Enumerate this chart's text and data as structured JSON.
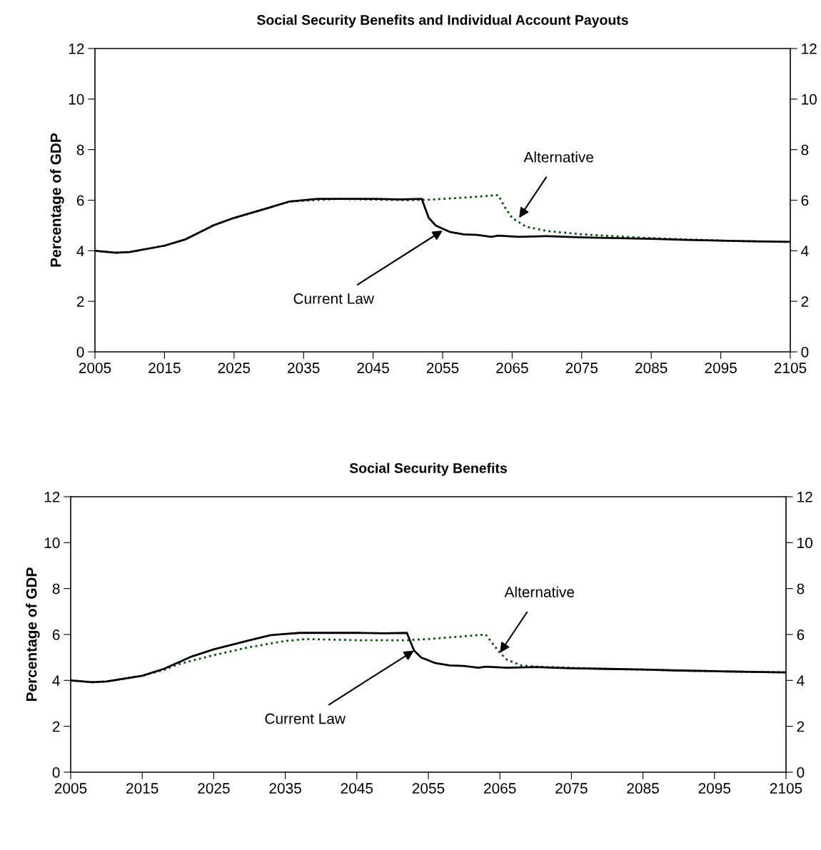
{
  "chart_data": [
    {
      "type": "line",
      "title": "Social Security Benefits and Individual Account Payouts",
      "ylabel": "Percentage of GDP",
      "xlim": [
        2005,
        2105
      ],
      "xticks": [
        2005,
        2015,
        2025,
        2035,
        2045,
        2055,
        2065,
        2075,
        2085,
        2095,
        2105
      ],
      "ylim": [
        0,
        12
      ],
      "yticks": [
        0,
        2,
        4,
        6,
        8,
        10,
        12
      ],
      "y2lim": [
        0,
        12
      ],
      "y2ticks": [
        0,
        2,
        4,
        6,
        8,
        10,
        12
      ],
      "grid": false,
      "series": [
        {
          "color": "#004d00",
          "line_style": "dotted",
          "x": [
            2005,
            2008,
            2010,
            2015,
            2018,
            2022,
            2025,
            2030,
            2033,
            2040,
            2050,
            2053,
            2058,
            2063,
            2064,
            2065,
            2067,
            2070,
            2075,
            2080,
            2085,
            2090,
            2095,
            2100,
            2105
          ],
          "values": [
            4.0,
            3.92,
            3.95,
            4.2,
            4.45,
            5.0,
            5.3,
            5.7,
            5.95,
            6.05,
            6.0,
            6.02,
            6.1,
            6.2,
            5.7,
            5.3,
            4.95,
            4.78,
            4.65,
            4.57,
            4.5,
            4.45,
            4.4,
            4.37,
            4.35
          ]
        },
        {
          "color": "#000000",
          "line_style": "solid",
          "x": [
            2005,
            2008,
            2010,
            2015,
            2018,
            2022,
            2025,
            2030,
            2033,
            2037,
            2045,
            2049,
            2052,
            2053,
            2054,
            2056,
            2058,
            2060,
            2062,
            2063,
            2066,
            2070,
            2075,
            2080,
            2085,
            2090,
            2095,
            2100,
            2105
          ],
          "values": [
            4.0,
            3.92,
            3.95,
            4.2,
            4.45,
            5.0,
            5.3,
            5.7,
            5.95,
            6.05,
            6.05,
            6.03,
            6.05,
            5.3,
            5.0,
            4.75,
            4.65,
            4.63,
            4.55,
            4.6,
            4.55,
            4.58,
            4.53,
            4.5,
            4.47,
            4.43,
            4.4,
            4.37,
            4.35
          ]
        }
      ],
      "annotations": [
        {
          "text": "Alternative",
          "x": 2066,
          "y": 5.3
        },
        {
          "text": "Current Law",
          "x": 2055,
          "y": 4.8
        }
      ]
    },
    {
      "type": "line",
      "title": "Social Security Benefits",
      "ylabel": "Percentage of GDP",
      "xlim": [
        2005,
        2105
      ],
      "xticks": [
        2005,
        2015,
        2025,
        2035,
        2045,
        2055,
        2065,
        2075,
        2085,
        2095,
        2105
      ],
      "ylim": [
        0,
        12
      ],
      "yticks": [
        0,
        2,
        4,
        6,
        8,
        10,
        12
      ],
      "y2lim": [
        0,
        12
      ],
      "y2ticks": [
        0,
        2,
        4,
        6,
        8,
        10,
        12
      ],
      "grid": false,
      "series": [
        {
          "color": "#004d00",
          "line_style": "dotted",
          "x": [
            2005,
            2008,
            2010,
            2015,
            2018,
            2020,
            2025,
            2030,
            2035,
            2038,
            2045,
            2052,
            2055,
            2060,
            2063,
            2064,
            2065,
            2066,
            2068,
            2070,
            2075,
            2080,
            2085,
            2090,
            2095,
            2100,
            2105
          ],
          "values": [
            4.0,
            3.92,
            3.95,
            4.2,
            4.45,
            4.7,
            5.1,
            5.45,
            5.72,
            5.8,
            5.75,
            5.75,
            5.8,
            5.92,
            6.0,
            5.6,
            5.2,
            4.9,
            4.65,
            4.6,
            4.55,
            4.5,
            4.47,
            4.43,
            4.4,
            4.37,
            4.35
          ]
        },
        {
          "color": "#000000",
          "line_style": "solid",
          "x": [
            2005,
            2008,
            2010,
            2015,
            2018,
            2022,
            2025,
            2030,
            2033,
            2037,
            2045,
            2049,
            2052,
            2053,
            2054,
            2056,
            2058,
            2060,
            2062,
            2063,
            2066,
            2070,
            2075,
            2080,
            2085,
            2090,
            2095,
            2100,
            2105
          ],
          "values": [
            4.0,
            3.92,
            3.95,
            4.2,
            4.5,
            5.05,
            5.35,
            5.75,
            5.97,
            6.07,
            6.07,
            6.05,
            6.07,
            5.3,
            5.0,
            4.75,
            4.65,
            4.63,
            4.55,
            4.6,
            4.55,
            4.58,
            4.53,
            4.5,
            4.47,
            4.43,
            4.4,
            4.37,
            4.35
          ]
        }
      ],
      "annotations": [
        {
          "text": "Alternative",
          "x": 2065,
          "y": 5.2
        },
        {
          "text": "Current Law",
          "x": 2053,
          "y": 5.3
        }
      ]
    }
  ]
}
